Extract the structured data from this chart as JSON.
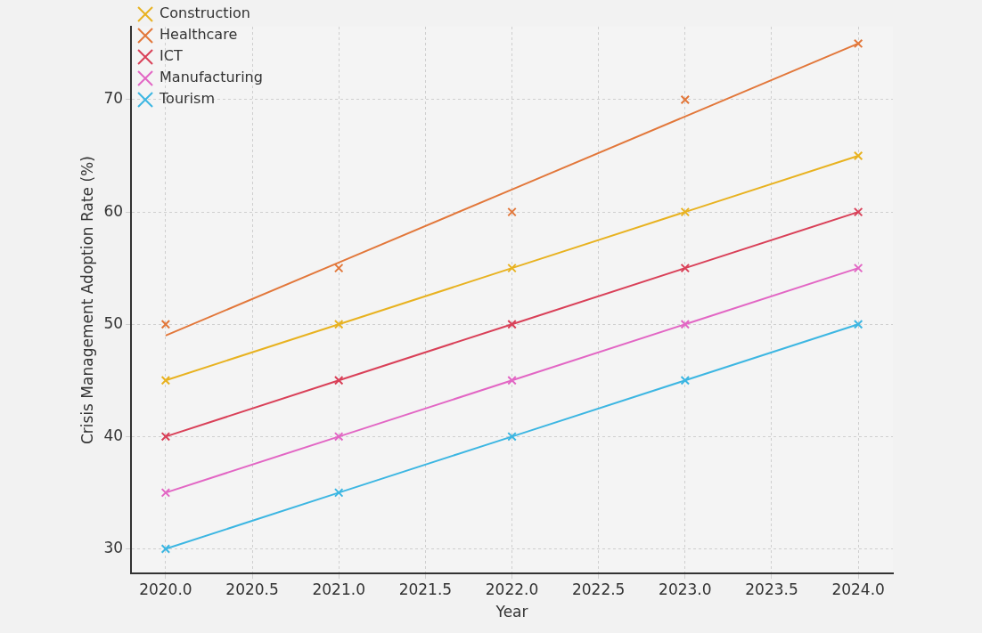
{
  "chart_data": {
    "type": "scatter",
    "xlabel": "Year",
    "ylabel": "Crisis Management Adoption Rate (%)",
    "xlim": [
      2019.8,
      2024.2
    ],
    "ylim": [
      27.8,
      76.5
    ],
    "xticks": [
      {
        "value": 2020,
        "label": "2020.0"
      },
      {
        "value": 2020.5,
        "label": "2020.5"
      },
      {
        "value": 2021,
        "label": "2021.0"
      },
      {
        "value": 2021.5,
        "label": "2021.5"
      },
      {
        "value": 2022,
        "label": "2022.0"
      },
      {
        "value": 2022.5,
        "label": "2022.5"
      },
      {
        "value": 2023,
        "label": "2023.0"
      },
      {
        "value": 2023.5,
        "label": "2023.5"
      },
      {
        "value": 2024,
        "label": "2024.0"
      }
    ],
    "yticks": [
      30,
      40,
      50,
      60,
      70
    ],
    "grid": true,
    "legend": "top left",
    "x": [
      2020,
      2021,
      2022,
      2023,
      2024
    ],
    "series": [
      {
        "name": "Construction",
        "color": "#e8b220",
        "marker": "cross",
        "values": [
          45,
          50,
          55,
          60,
          65
        ]
      },
      {
        "name": "Healthcare",
        "color": "#e2773a",
        "marker": "cross",
        "values": [
          50,
          55,
          60,
          70,
          75
        ]
      },
      {
        "name": "ICT",
        "color": "#d94058",
        "marker": "cross",
        "values": [
          40,
          45,
          50,
          55,
          60
        ]
      },
      {
        "name": "Manufacturing",
        "color": "#e266c4",
        "marker": "cross",
        "values": [
          35,
          40,
          45,
          50,
          55
        ]
      },
      {
        "name": "Tourism",
        "color": "#3cb6e2",
        "marker": "cross",
        "values": [
          30,
          35,
          40,
          45,
          50
        ]
      },
      {
        "type": "line",
        "color": "#e8b220",
        "marker": "none",
        "values": [
          45,
          50,
          55,
          60,
          65
        ]
      },
      {
        "type": "line",
        "color": "#e2773a",
        "marker": "none",
        "values": [
          49,
          55.5,
          62,
          68.5,
          75
        ]
      },
      {
        "type": "line",
        "color": "#d94058",
        "marker": "none",
        "values": [
          40,
          45,
          50,
          55,
          60
        ]
      },
      {
        "type": "line",
        "color": "#e266c4",
        "marker": "none",
        "values": [
          35,
          40,
          45,
          50,
          55
        ]
      },
      {
        "type": "line",
        "color": "#3cb6e2",
        "marker": "none",
        "values": [
          30,
          35,
          40,
          45,
          50
        ]
      }
    ]
  }
}
